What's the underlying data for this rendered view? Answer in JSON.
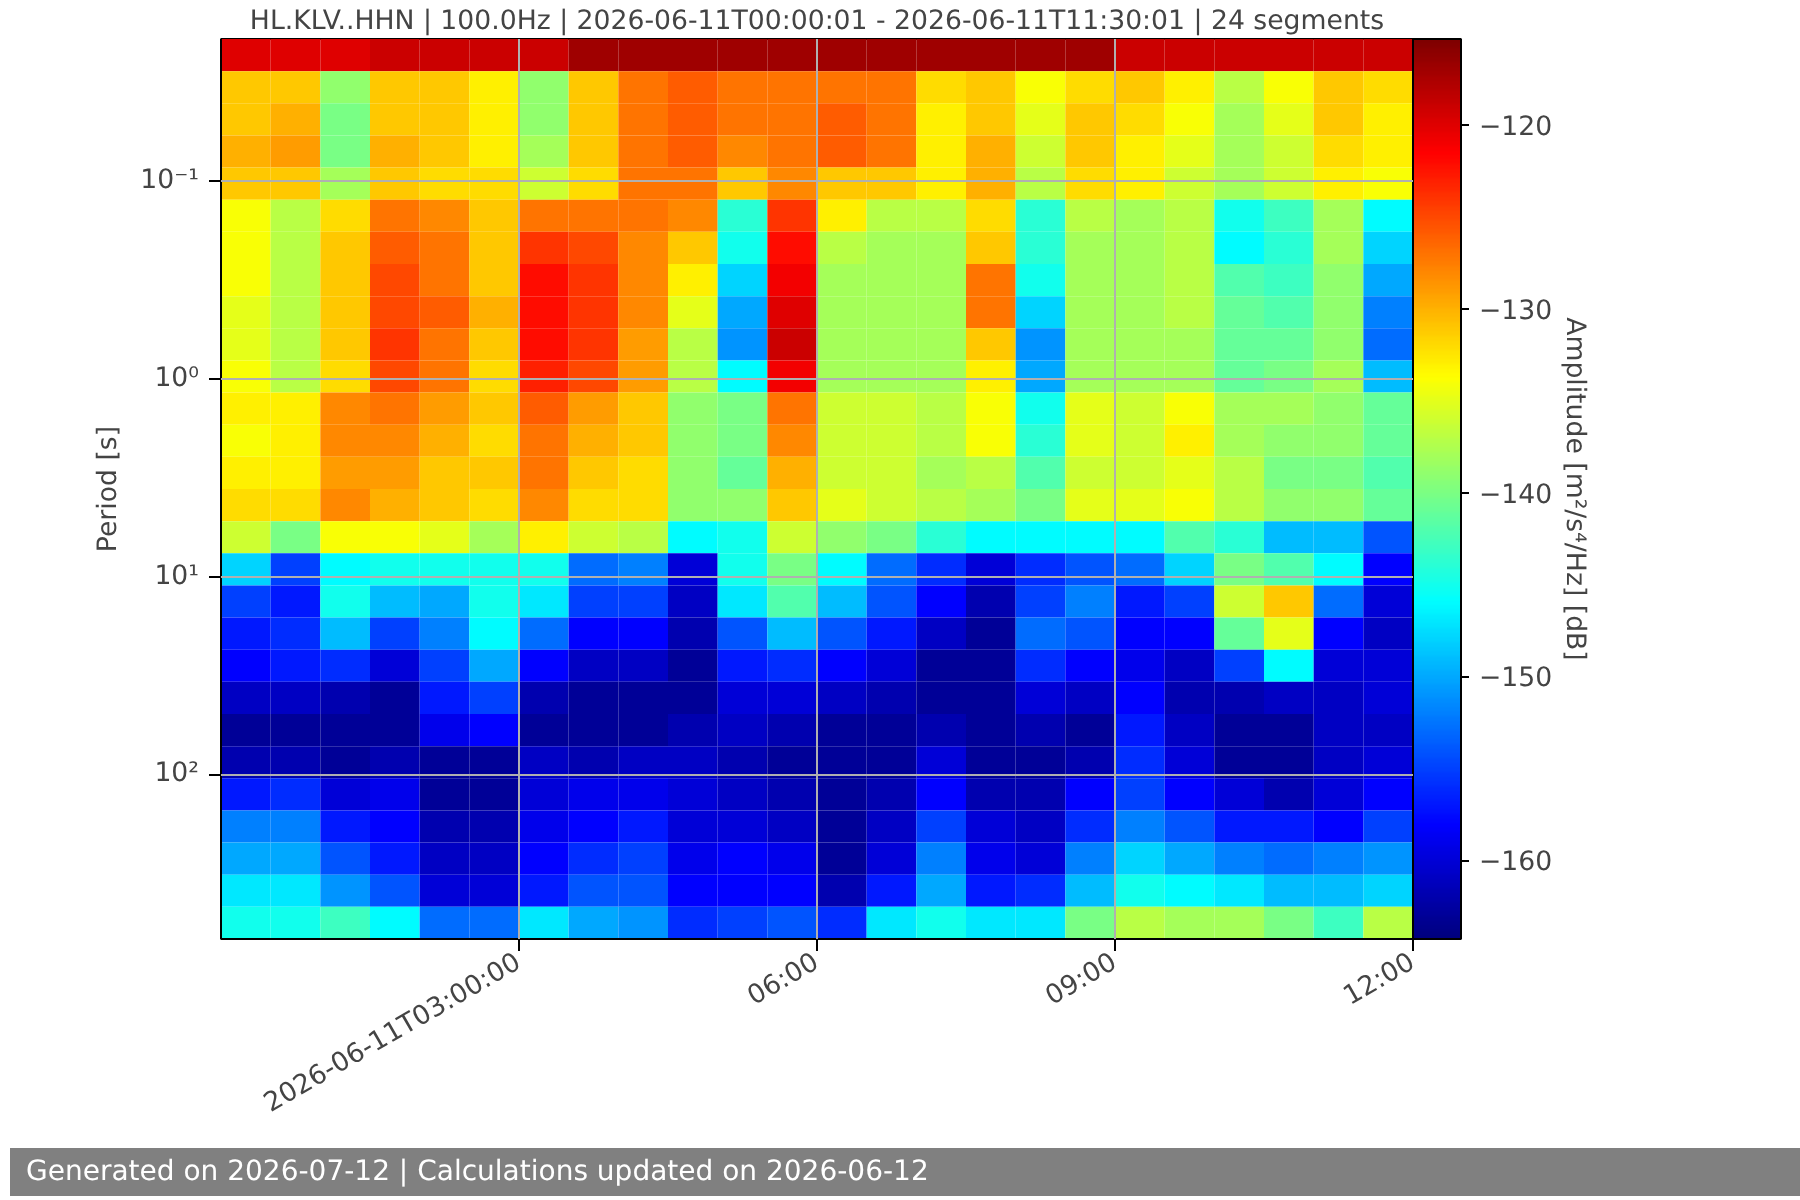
{
  "chart_data": {
    "type": "heatmap",
    "title": "HL.KLV..HHN | 100.0Hz | 2026-06-11T00:00:01 - 2026-06-11T11:30:01 | 24 segments",
    "ylabel": "Period [s]",
    "clabel": "Amplitude [m²/s⁴/Hz] [dB]",
    "annotations": [
      "Generated on 2026-07-12 | Calculations updated on 2026-06-12"
    ],
    "x": [
      "2026-06-11T00:15",
      "2026-06-11T00:45",
      "2026-06-11T01:15",
      "2026-06-11T01:45",
      "2026-06-11T02:15",
      "2026-06-11T02:45",
      "2026-06-11T03:15",
      "2026-06-11T03:45",
      "2026-06-11T04:15",
      "2026-06-11T04:45",
      "2026-06-11T05:15",
      "2026-06-11T05:45",
      "2026-06-11T06:15",
      "2026-06-11T06:45",
      "2026-06-11T07:15",
      "2026-06-11T07:45",
      "2026-06-11T08:15",
      "2026-06-11T08:45",
      "2026-06-11T09:15",
      "2026-06-11T09:45",
      "2026-06-11T10:15",
      "2026-06-11T10:45",
      "2026-06-11T11:15",
      "2026-06-11T11:45"
    ],
    "xlim": [
      "2026-06-11T00:00",
      "2026-06-11T12:00"
    ],
    "xticks": [
      {
        "value": "2026-06-11T03:00",
        "label": "2026-06-11T03:00:00"
      },
      {
        "value": "2026-06-11T06:00",
        "label": "06:00"
      },
      {
        "value": "2026-06-11T09:00",
        "label": "09:00"
      },
      {
        "value": "2026-06-11T12:00",
        "label": "12:00"
      }
    ],
    "ylim": [
      684,
      0.019
    ],
    "yticks": [
      {
        "value": 0.1,
        "label": "10⁻¹"
      },
      {
        "value": 1,
        "label": "10⁰"
      },
      {
        "value": 10,
        "label": "10¹"
      },
      {
        "value": 100,
        "label": "10²"
      }
    ],
    "log": "y",
    "grid": true,
    "clim": [
      -164.3,
      -115.3
    ],
    "cticks": [
      -160,
      -150,
      -140,
      -130,
      -120
    ],
    "cells": [
      [
        -120,
        -120,
        -120,
        -119,
        -119,
        -119,
        -119,
        -117,
        -117,
        -117,
        -117,
        -117,
        -117,
        -117,
        -117,
        -117,
        -117,
        -117,
        -119,
        -119,
        -119,
        -119,
        -119,
        -119
      ],
      [
        -131,
        -131,
        -139,
        -131,
        -131,
        -133,
        -139,
        -131,
        -127,
        -126,
        -127,
        -127,
        -127,
        -127,
        -132,
        -131,
        -134,
        -132,
        -131,
        -133,
        -137,
        -134,
        -131,
        -132
      ],
      [
        -131,
        -130,
        -140,
        -131,
        -131,
        -133,
        -139,
        -131,
        -127,
        -126,
        -127,
        -127,
        -126,
        -127,
        -133,
        -131,
        -135,
        -131,
        -132,
        -134,
        -138,
        -135,
        -131,
        -133
      ],
      [
        -130,
        -129,
        -140,
        -130,
        -131,
        -133,
        -138,
        -131,
        -127,
        -126,
        -128,
        -127,
        -126,
        -127,
        -133,
        -130,
        -136,
        -131,
        -133,
        -135,
        -138,
        -136,
        -132,
        -133
      ],
      [
        -131,
        -131,
        -138,
        -131,
        -132,
        -132,
        -136,
        -132,
        -127,
        -127,
        -131,
        -128,
        -131,
        -131,
        -133,
        -130,
        -137,
        -132,
        -133,
        -136,
        -138,
        -136,
        -133,
        -134
      ],
      [
        -134,
        -137,
        -132,
        -127,
        -128,
        -131,
        -127,
        -127,
        -127,
        -128,
        -144,
        -124,
        -133,
        -137,
        -137,
        -132,
        -144,
        -137,
        -138,
        -137,
        -145,
        -143,
        -138,
        -146
      ],
      [
        -134,
        -137,
        -131,
        -126,
        -127,
        -131,
        -124,
        -125,
        -128,
        -131,
        -145,
        -122,
        -137,
        -138,
        -138,
        -131,
        -144,
        -138,
        -138,
        -137,
        -146,
        -144,
        -138,
        -148
      ],
      [
        -134,
        -137,
        -131,
        -125,
        -127,
        -131,
        -122,
        -124,
        -128,
        -133,
        -148,
        -121,
        -138,
        -138,
        -138,
        -127,
        -145,
        -138,
        -138,
        -137,
        -142,
        -143,
        -139,
        -150
      ],
      [
        -135,
        -137,
        -131,
        -125,
        -126,
        -130,
        -122,
        -124,
        -128,
        -135,
        -150,
        -120,
        -138,
        -138,
        -138,
        -127,
        -148,
        -138,
        -138,
        -137,
        -141,
        -142,
        -139,
        -152
      ],
      [
        -135,
        -137,
        -131,
        -124,
        -127,
        -131,
        -122,
        -124,
        -129,
        -137,
        -151,
        -119,
        -138,
        -138,
        -138,
        -131,
        -151,
        -138,
        -138,
        -138,
        -141,
        -141,
        -139,
        -153
      ],
      [
        -134,
        -137,
        -132,
        -125,
        -127,
        -132,
        -123,
        -125,
        -129,
        -137,
        -146,
        -121,
        -138,
        -138,
        -138,
        -133,
        -150,
        -138,
        -138,
        -138,
        -141,
        -140,
        -138,
        -149
      ],
      [
        -133,
        -133,
        -128,
        -127,
        -129,
        -131,
        -126,
        -129,
        -131,
        -139,
        -140,
        -127,
        -136,
        -136,
        -137,
        -134,
        -145,
        -135,
        -136,
        -134,
        -138,
        -138,
        -139,
        -141
      ],
      [
        -134,
        -133,
        -128,
        -128,
        -130,
        -132,
        -127,
        -130,
        -131,
        -139,
        -140,
        -128,
        -136,
        -136,
        -137,
        -134,
        -144,
        -135,
        -136,
        -133,
        -138,
        -139,
        -139,
        -141
      ],
      [
        -133,
        -133,
        -129,
        -129,
        -131,
        -131,
        -127,
        -131,
        -132,
        -139,
        -141,
        -130,
        -136,
        -136,
        -138,
        -137,
        -142,
        -136,
        -136,
        -135,
        -137,
        -140,
        -140,
        -142
      ],
      [
        -132,
        -132,
        -128,
        -130,
        -131,
        -132,
        -128,
        -132,
        -132,
        -139,
        -139,
        -131,
        -135,
        -136,
        -137,
        -138,
        -140,
        -135,
        -135,
        -134,
        -137,
        -139,
        -139,
        -141
      ],
      [
        -136,
        -140,
        -134,
        -134,
        -135,
        -138,
        -133,
        -136,
        -137,
        -146,
        -145,
        -136,
        -139,
        -140,
        -144,
        -146,
        -146,
        -146,
        -146,
        -142,
        -144,
        -149,
        -149,
        -154
      ],
      [
        -148,
        -155,
        -146,
        -145,
        -145,
        -145,
        -145,
        -153,
        -152,
        -160,
        -145,
        -140,
        -146,
        -153,
        -156,
        -160,
        -156,
        -154,
        -153,
        -148,
        -140,
        -142,
        -146,
        -158
      ],
      [
        -155,
        -157,
        -145,
        -149,
        -150,
        -145,
        -147,
        -155,
        -155,
        -161,
        -147,
        -142,
        -149,
        -154,
        -158,
        -162,
        -155,
        -152,
        -157,
        -155,
        -136,
        -131,
        -153,
        -160
      ],
      [
        -157,
        -156,
        -149,
        -155,
        -152,
        -146,
        -153,
        -158,
        -158,
        -162,
        -154,
        -149,
        -154,
        -157,
        -161,
        -163,
        -153,
        -154,
        -158,
        -158,
        -141,
        -135,
        -158,
        -161
      ],
      [
        -158,
        -157,
        -156,
        -160,
        -155,
        -150,
        -158,
        -161,
        -161,
        -163,
        -157,
        -156,
        -158,
        -160,
        -163,
        -163,
        -156,
        -158,
        -159,
        -161,
        -155,
        -146,
        -160,
        -160
      ],
      [
        -161,
        -161,
        -162,
        -163,
        -157,
        -155,
        -162,
        -163,
        -163,
        -163,
        -160,
        -160,
        -161,
        -162,
        -163,
        -163,
        -160,
        -161,
        -158,
        -162,
        -162,
        -161,
        -161,
        -160
      ],
      [
        -163,
        -163,
        -163,
        -163,
        -159,
        -158,
        -163,
        -163,
        -163,
        -162,
        -161,
        -162,
        -163,
        -163,
        -162,
        -163,
        -162,
        -163,
        -157,
        -161,
        -163,
        -163,
        -161,
        -161
      ],
      [
        -162,
        -162,
        -163,
        -162,
        -163,
        -163,
        -161,
        -162,
        -161,
        -161,
        -162,
        -163,
        -163,
        -163,
        -160,
        -163,
        -163,
        -162,
        -156,
        -160,
        -163,
        -163,
        -161,
        -160
      ],
      [
        -157,
        -156,
        -160,
        -159,
        -163,
        -163,
        -160,
        -159,
        -159,
        -160,
        -161,
        -162,
        -163,
        -162,
        -158,
        -162,
        -162,
        -158,
        -155,
        -158,
        -160,
        -162,
        -160,
        -158
      ],
      [
        -152,
        -152,
        -157,
        -158,
        -162,
        -162,
        -159,
        -158,
        -157,
        -160,
        -160,
        -161,
        -163,
        -161,
        -155,
        -160,
        -161,
        -156,
        -152,
        -154,
        -157,
        -157,
        -158,
        -155
      ],
      [
        -150,
        -150,
        -154,
        -157,
        -161,
        -161,
        -158,
        -156,
        -155,
        -159,
        -158,
        -159,
        -163,
        -160,
        -152,
        -159,
        -160,
        -152,
        -148,
        -150,
        -152,
        -153,
        -152,
        -151
      ],
      [
        -147,
        -147,
        -151,
        -154,
        -160,
        -160,
        -157,
        -154,
        -154,
        -158,
        -158,
        -158,
        -162,
        -157,
        -150,
        -157,
        -156,
        -149,
        -145,
        -146,
        -147,
        -149,
        -149,
        -148
      ],
      [
        -145,
        -145,
        -143,
        -146,
        -153,
        -153,
        -147,
        -150,
        -151,
        -156,
        -155,
        -154,
        -156,
        -147,
        -145,
        -147,
        -147,
        -140,
        -137,
        -138,
        -138,
        -140,
        -143,
        -137
      ]
    ]
  }
}
